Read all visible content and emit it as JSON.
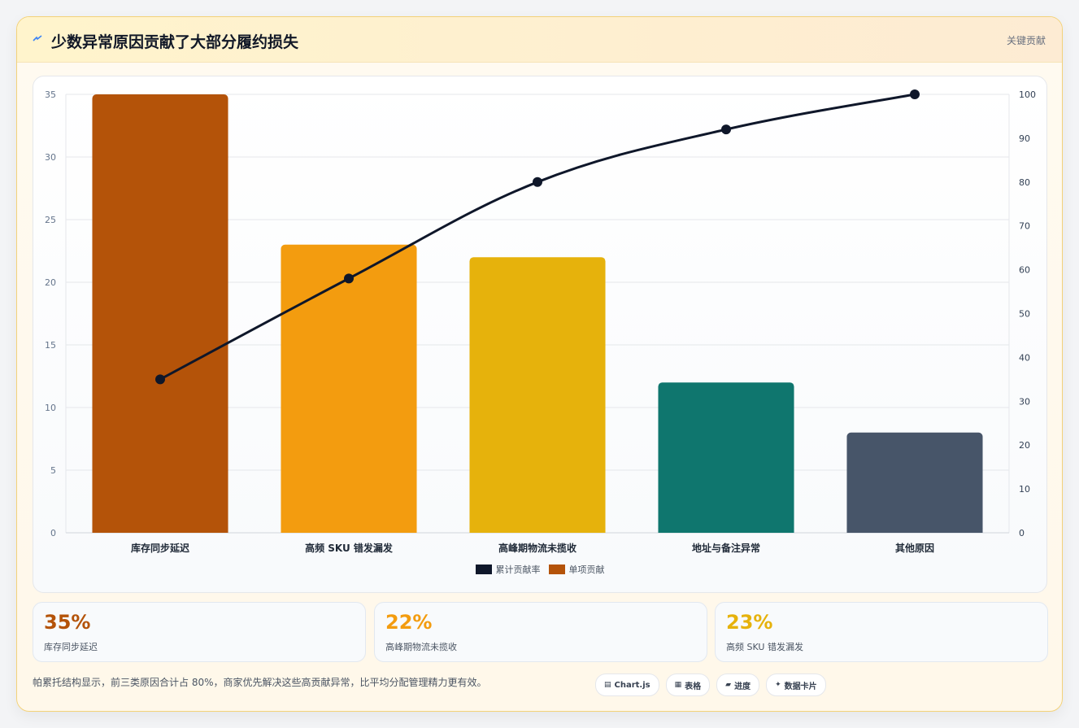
{
  "header": {
    "title": "少数异常原因贡献了大部分履约损失",
    "badge": "关键贡献"
  },
  "chart_data": {
    "type": "bar",
    "categories": [
      "库存同步延迟",
      "高频 SKU 错发漏发",
      "高峰期物流未揽收",
      "地址与备注异常",
      "其他原因"
    ],
    "series": [
      {
        "name": "单项贡献",
        "type": "bar",
        "axis": "left",
        "values": [
          35,
          23,
          22,
          12,
          8
        ],
        "colors": [
          "#b45309",
          "#f39c0f",
          "#e6b20c",
          "#0f766e",
          "#475569"
        ]
      },
      {
        "name": "累计贡献率",
        "type": "line",
        "axis": "right",
        "values": [
          35,
          58,
          80,
          92,
          100
        ],
        "color": "#0f172a"
      }
    ],
    "ylim_left": [
      0,
      35
    ],
    "yticks_left": [
      0,
      5,
      10,
      15,
      20,
      25,
      30,
      35
    ],
    "ylim_right": [
      0,
      100
    ],
    "yticks_right": [
      0,
      10,
      20,
      30,
      40,
      50,
      60,
      70,
      80,
      90,
      100
    ],
    "grid": true,
    "legend_position": "bottom",
    "legend": [
      {
        "label": "累计贡献率",
        "color": "#0f172a"
      },
      {
        "label": "单项贡献",
        "color": "#b45309"
      }
    ]
  },
  "kpis": [
    {
      "value": "35%",
      "label": "库存同步延迟",
      "color": "#b45309"
    },
    {
      "value": "22%",
      "label": "高峰期物流未揽收",
      "color": "#f39c0f"
    },
    {
      "value": "23%",
      "label": "高频 SKU 错发漏发",
      "color": "#e6b20c"
    }
  ],
  "footnote": "帕累托结构显示，前三类原因合计占 80%，商家优先解决这些高贡献异常，比平均分配管理精力更有效。",
  "chips": [
    {
      "icon": "▤",
      "label": "Chart.js"
    },
    {
      "icon": "▦",
      "label": "表格"
    },
    {
      "icon": "▰",
      "label": "进度"
    },
    {
      "icon": "✦",
      "label": "数据卡片"
    }
  ]
}
